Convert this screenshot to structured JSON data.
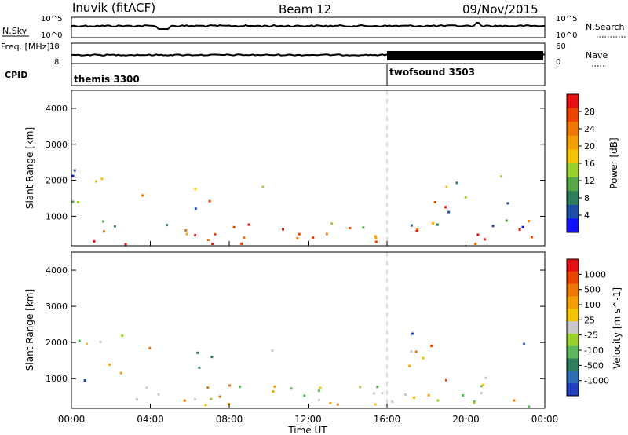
{
  "header": {
    "station": "Inuvik (fitACF)",
    "beam": "Beam 12",
    "date": "09/Nov/2015"
  },
  "chart_data": [
    {
      "type": "line",
      "panel": "noise",
      "ylabel": "N.Sky",
      "right_label": "N.Search",
      "yticks_left": [
        "10^5",
        "10^0"
      ],
      "yticks_right": [
        "10^5",
        "10^0"
      ]
    },
    {
      "type": "line",
      "panel": "frequency",
      "ylabel": "Freq. [MHz]",
      "yticks_left": [
        "18",
        "8"
      ],
      "right_label": "Nave",
      "yticks_right": [
        "60",
        "0"
      ]
    },
    {
      "type": "table",
      "panel": "cpid",
      "label": "CPID",
      "segments": [
        {
          "name": "themis 3300",
          "start_h": 0,
          "end_h": 16
        },
        {
          "name": "twofsound 3503",
          "start_h": 16,
          "end_h": 24
        }
      ]
    },
    {
      "type": "heatmap",
      "panel": "power",
      "ylabel": "Slant Range [km]",
      "yticks": [
        "1000",
        "2000",
        "3000",
        "4000"
      ],
      "ylim": [
        180,
        4500
      ],
      "colorbar": {
        "label": "Power [dB]",
        "ticks": [
          "4",
          "8",
          "12",
          "16",
          "20",
          "24",
          "28"
        ],
        "colors": [
          "#1010ff",
          "#1e4fa8",
          "#2e7d5b",
          "#56a845",
          "#9ad12e",
          "#f5c400",
          "#f5a000",
          "#f07800",
          "#ee4400",
          "#e81010"
        ]
      }
    },
    {
      "type": "heatmap",
      "panel": "velocity",
      "ylabel": "Slant Range [km]",
      "yticks": [
        "1000",
        "2000",
        "3000",
        "4000"
      ],
      "ylim": [
        180,
        4500
      ],
      "xlabel": "Time UT",
      "xticks": [
        "00:00",
        "04:00",
        "08:00",
        "12:00",
        "16:00",
        "20:00",
        "00:00"
      ],
      "xlim_hours": [
        0,
        24
      ],
      "colorbar": {
        "label": "Velocity [m s^-1]",
        "ticks": [
          "1000",
          "500",
          "100",
          "25",
          "-25",
          "-100",
          "-500",
          "-1000"
        ],
        "colors": [
          "#2040c0",
          "#2f6db5",
          "#2e7d5b",
          "#5cb85c",
          "#9ad12e",
          "#c8c8c8",
          "#f5c400",
          "#f5a000",
          "#f07800",
          "#ee4400",
          "#e81010"
        ]
      }
    }
  ]
}
